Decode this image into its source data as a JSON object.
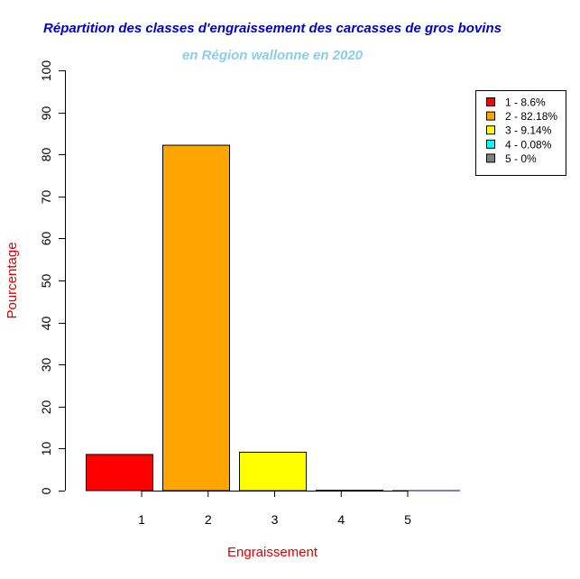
{
  "chart_data": {
    "type": "bar",
    "title": "Répartition des classes d'engraissement des carcasses de gros bovins",
    "subtitle": "en Région wallonne en 2020",
    "xlabel": "Engraissement",
    "ylabel": "Pourcentage",
    "categories": [
      "1",
      "2",
      "3",
      "4",
      "5"
    ],
    "values": [
      8.6,
      82.18,
      9.14,
      0.08,
      0
    ],
    "colors": [
      "#ff0000",
      "#ffa500",
      "#ffff00",
      "#00ffff",
      "#808080"
    ],
    "ylim": [
      0,
      100
    ],
    "yticks": [
      "0",
      "10",
      "20",
      "30",
      "40",
      "50",
      "60",
      "70",
      "80",
      "90",
      "100"
    ],
    "legend": {
      "position": "top-right",
      "entries": [
        "1 - 8.6%",
        "2 - 82.18%",
        "3 - 9.14%",
        "4 - 0.08%",
        "5 - 0%"
      ]
    },
    "colors_text": {
      "title": "#0000cd",
      "subtitle": "#87ceeb",
      "axis_labels": "#dd0000"
    }
  }
}
